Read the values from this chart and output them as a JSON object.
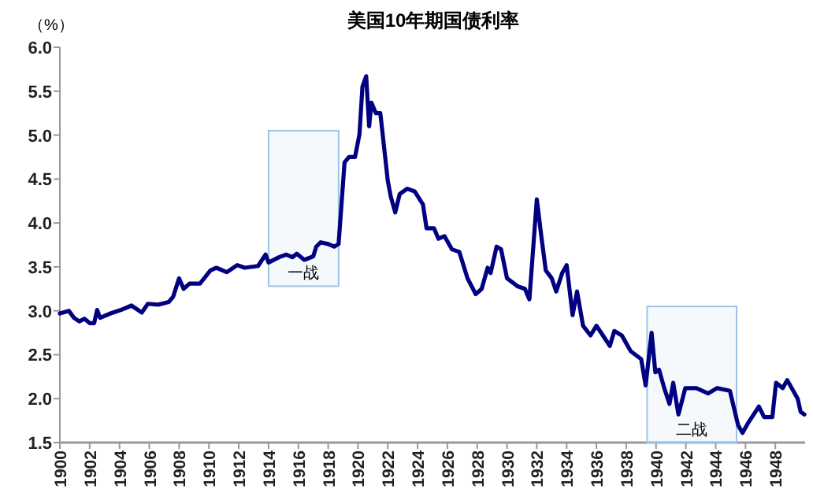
{
  "chart_data": {
    "type": "line",
    "title": "美国10年期国债利率",
    "ylabel": "（%）",
    "x": [
      1900.0,
      1900.6,
      1900.95,
      1901.3,
      1901.65,
      1902.0,
      1902.3,
      1902.5,
      1902.7,
      1903.4,
      1904.1,
      1904.8,
      1905.5,
      1905.9,
      1906.6,
      1907.3,
      1907.6,
      1908.0,
      1908.3,
      1908.7,
      1909.4,
      1910.1,
      1910.5,
      1911.2,
      1911.9,
      1912.4,
      1913.3,
      1913.8,
      1914.0,
      1914.7,
      1915.2,
      1915.6,
      1915.9,
      1916.4,
      1917.0,
      1917.2,
      1917.5,
      1918.0,
      1918.4,
      1918.7,
      1919.1,
      1919.4,
      1919.8,
      1920.1,
      1920.3,
      1920.55,
      1920.75,
      1920.9,
      1921.2,
      1921.5,
      1922.0,
      1922.2,
      1922.5,
      1922.8,
      1923.3,
      1923.8,
      1924.36,
      1924.6,
      1925.1,
      1925.4,
      1925.8,
      1926.3,
      1926.8,
      1927.35,
      1927.9,
      1928.3,
      1928.7,
      1928.9,
      1929.3,
      1929.6,
      1930.0,
      1930.7,
      1931.2,
      1931.5,
      1932.0,
      1932.3,
      1932.6,
      1933.0,
      1933.3,
      1933.7,
      1934.0,
      1934.4,
      1934.7,
      1935.1,
      1935.6,
      1936.0,
      1936.9,
      1937.2,
      1937.7,
      1938.3,
      1939.0,
      1939.3,
      1939.7,
      1939.95,
      1940.2,
      1940.55,
      1940.9,
      1941.15,
      1941.5,
      1941.96,
      1942.7,
      1943.5,
      1944.1,
      1944.95,
      1945.5,
      1945.8,
      1946.2,
      1946.9,
      1947.25,
      1947.8,
      1948.05,
      1948.5,
      1948.8,
      1949.5,
      1949.7,
      1949.95
    ],
    "series": [
      {
        "color": "#000080",
        "values": [
          2.97,
          3.0,
          2.92,
          2.88,
          2.91,
          2.86,
          2.86,
          3.01,
          2.92,
          2.97,
          3.01,
          3.06,
          2.98,
          3.08,
          3.07,
          3.1,
          3.16,
          3.37,
          3.25,
          3.31,
          3.31,
          3.46,
          3.49,
          3.44,
          3.52,
          3.49,
          3.51,
          3.64,
          3.55,
          3.61,
          3.64,
          3.61,
          3.65,
          3.58,
          3.62,
          3.73,
          3.78,
          3.76,
          3.73,
          3.76,
          4.69,
          4.75,
          4.75,
          5.01,
          5.55,
          5.67,
          5.1,
          5.37,
          5.25,
          5.25,
          4.48,
          4.3,
          4.12,
          4.33,
          4.39,
          4.36,
          4.21,
          3.94,
          3.94,
          3.82,
          3.85,
          3.7,
          3.67,
          3.37,
          3.19,
          3.25,
          3.49,
          3.43,
          3.73,
          3.7,
          3.37,
          3.28,
          3.25,
          3.13,
          4.27,
          3.85,
          3.46,
          3.37,
          3.22,
          3.43,
          3.52,
          2.95,
          3.22,
          2.83,
          2.72,
          2.83,
          2.6,
          2.77,
          2.72,
          2.54,
          2.45,
          2.15,
          2.75,
          2.3,
          2.33,
          2.12,
          1.94,
          2.18,
          1.82,
          2.12,
          2.12,
          2.06,
          2.12,
          2.09,
          1.7,
          1.61,
          1.73,
          1.91,
          1.79,
          1.79,
          2.18,
          2.12,
          2.21,
          2.0,
          1.85,
          1.82
        ]
      }
    ],
    "xlim": [
      1900,
      1950
    ],
    "ylim": [
      1.5,
      6.0
    ],
    "xticks": [
      1900,
      1902,
      1904,
      1906,
      1908,
      1910,
      1912,
      1914,
      1916,
      1918,
      1920,
      1922,
      1924,
      1926,
      1928,
      1930,
      1932,
      1934,
      1936,
      1938,
      1940,
      1942,
      1944,
      1946,
      1948
    ],
    "yticks": [
      {
        "value": 1.5,
        "label": "1.5"
      },
      {
        "value": 2,
        "label": "2.0"
      },
      {
        "value": 2.5,
        "label": "2.5"
      },
      {
        "value": 3,
        "label": "3.0"
      },
      {
        "value": 3.5,
        "label": "3.5"
      },
      {
        "value": 4,
        "label": "4.0"
      },
      {
        "value": 4.5,
        "label": "4.5"
      },
      {
        "value": 5,
        "label": "5.0"
      },
      {
        "value": 5.5,
        "label": "5.5"
      },
      {
        "value": 6,
        "label": "6.0"
      }
    ],
    "bands": [
      {
        "axis": "x",
        "from": 1914.0,
        "to": 1918.7,
        "label": "一战",
        "color": "#9dc3e6"
      },
      {
        "axis": "x",
        "from": 1939.4,
        "to": 1945.4,
        "label": "二战",
        "color": "#9dc3e6"
      }
    ]
  }
}
